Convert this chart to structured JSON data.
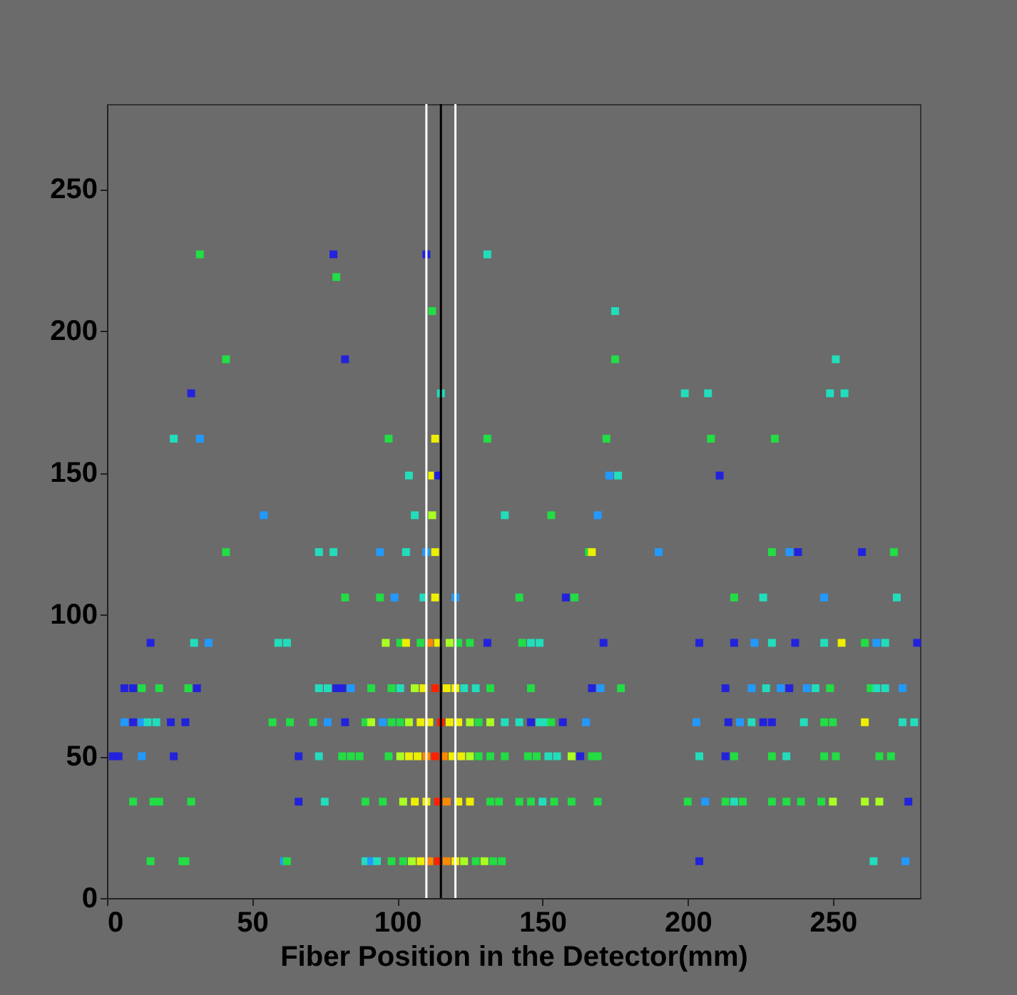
{
  "chart_data": {
    "type": "scatter",
    "xlabel": "Fiber Position in the Detector(mm)",
    "xlim": [
      0,
      280
    ],
    "xticks": [
      0,
      50,
      100,
      150,
      200,
      250
    ],
    "ylim": [
      0,
      280
    ],
    "yticks": [
      0,
      50,
      100,
      150,
      200,
      250
    ],
    "grid": false,
    "marker": "square",
    "x": [
      15,
      26,
      27,
      61,
      62,
      89,
      91,
      93,
      98,
      102,
      105,
      108,
      111,
      114,
      117,
      120,
      123,
      127,
      130,
      133,
      136,
      204,
      264,
      275,
      9,
      16,
      18,
      29,
      66,
      75,
      89,
      95,
      102,
      106,
      110,
      114,
      117,
      121,
      125,
      132,
      135,
      142,
      146,
      150,
      154,
      160,
      169,
      200,
      206,
      213,
      216,
      219,
      229,
      234,
      239,
      246,
      250,
      261,
      266,
      276,
      2,
      4,
      12,
      23,
      66,
      73,
      81,
      84,
      87,
      97,
      101,
      104,
      107,
      110,
      113,
      116,
      119,
      122,
      125,
      128,
      132,
      137,
      145,
      148,
      152,
      155,
      160,
      163,
      167,
      169,
      204,
      213,
      216,
      229,
      234,
      247,
      251,
      266,
      270,
      6,
      9,
      12,
      14,
      17,
      22,
      27,
      57,
      63,
      71,
      76,
      82,
      89,
      91,
      95,
      98,
      101,
      104,
      108,
      111,
      115,
      118,
      121,
      125,
      128,
      132,
      137,
      142,
      146,
      149,
      151,
      153,
      157,
      165,
      203,
      214,
      218,
      222,
      226,
      229,
      240,
      247,
      250,
      261,
      274,
      278,
      6,
      9,
      12,
      18,
      28,
      31,
      73,
      76,
      79,
      81,
      84,
      91,
      98,
      101,
      106,
      109,
      113,
      117,
      120,
      123,
      127,
      132,
      146,
      167,
      170,
      177,
      213,
      222,
      227,
      232,
      235,
      241,
      244,
      249,
      263,
      265,
      268,
      274,
      15,
      30,
      35,
      59,
      62,
      96,
      101,
      103,
      108,
      111,
      114,
      118,
      121,
      125,
      131,
      143,
      146,
      149,
      171,
      204,
      216,
      223,
      229,
      237,
      247,
      253,
      261,
      265,
      268,
      279,
      82,
      94,
      99,
      109,
      113,
      120,
      142,
      158,
      161,
      216,
      226,
      247,
      272,
      41,
      73,
      78,
      94,
      103,
      110,
      113,
      166,
      167,
      190,
      229,
      235,
      238,
      260,
      271,
      54,
      106,
      112,
      137,
      153,
      169,
      104,
      112,
      114,
      173,
      176,
      211,
      23,
      32,
      97,
      113,
      131,
      172,
      208,
      230,
      29,
      115,
      199,
      207,
      249,
      254,
      41,
      82,
      175,
      251,
      112,
      175,
      79,
      32,
      78,
      110,
      131
    ],
    "values": [
      13,
      13,
      13,
      13,
      13,
      13,
      13,
      13,
      13,
      13,
      13,
      13,
      13,
      13,
      13,
      13,
      13,
      13,
      13,
      13,
      13,
      13,
      13,
      13,
      34,
      34,
      34,
      34,
      34,
      34,
      34,
      34,
      34,
      34,
      34,
      34,
      34,
      34,
      34,
      34,
      34,
      34,
      34,
      34,
      34,
      34,
      34,
      34,
      34,
      34,
      34,
      34,
      34,
      34,
      34,
      34,
      34,
      34,
      34,
      34,
      50,
      50,
      50,
      50,
      50,
      50,
      50,
      50,
      50,
      50,
      50,
      50,
      50,
      50,
      50,
      50,
      50,
      50,
      50,
      50,
      50,
      50,
      50,
      50,
      50,
      50,
      50,
      50,
      50,
      50,
      50,
      50,
      50,
      50,
      50,
      50,
      50,
      50,
      50,
      62,
      62,
      62,
      62,
      62,
      62,
      62,
      62,
      62,
      62,
      62,
      62,
      62,
      62,
      62,
      62,
      62,
      62,
      62,
      62,
      62,
      62,
      62,
      62,
      62,
      62,
      62,
      62,
      62,
      62,
      62,
      62,
      62,
      62,
      62,
      62,
      62,
      62,
      62,
      62,
      62,
      62,
      62,
      62,
      62,
      62,
      74,
      74,
      74,
      74,
      74,
      74,
      74,
      74,
      74,
      74,
      74,
      74,
      74,
      74,
      74,
      74,
      74,
      74,
      74,
      74,
      74,
      74,
      74,
      74,
      74,
      74,
      74,
      74,
      74,
      74,
      74,
      74,
      74,
      74,
      74,
      74,
      74,
      74,
      90,
      90,
      90,
      90,
      90,
      90,
      90,
      90,
      90,
      90,
      90,
      90,
      90,
      90,
      90,
      90,
      90,
      90,
      90,
      90,
      90,
      90,
      90,
      90,
      90,
      90,
      90,
      90,
      90,
      90,
      106,
      106,
      106,
      106,
      106,
      106,
      106,
      106,
      106,
      106,
      106,
      106,
      106,
      122,
      122,
      122,
      122,
      122,
      122,
      122,
      122,
      122,
      122,
      122,
      122,
      122,
      122,
      122,
      135,
      135,
      135,
      135,
      135,
      135,
      149,
      149,
      149,
      149,
      149,
      149,
      162,
      162,
      162,
      162,
      162,
      162,
      162,
      162,
      178,
      178,
      178,
      178,
      178,
      178,
      190,
      190,
      190,
      190,
      207,
      207,
      219,
      227,
      227,
      227,
      227
    ],
    "colors": [
      "#22dd44",
      "#22dd44",
      "#22dd44",
      "#2299ff",
      "#22dd44",
      "#22ddbb",
      "#2299ff",
      "#22ddbb",
      "#22dd44",
      "#22dd44",
      "#aaff22",
      "#eeee00",
      "#ff8800",
      "#ff2200",
      "#ff8800",
      "#eeee00",
      "#aaff22",
      "#22dd44",
      "#aaff22",
      "#22dd44",
      "#22dd44",
      "#2222dd",
      "#22ddbb",
      "#2299ff",
      "#22dd44",
      "#22dd44",
      "#22dd44",
      "#22dd44",
      "#2222dd",
      "#22ddbb",
      "#22dd44",
      "#22dd44",
      "#aaff22",
      "#eeee00",
      "#eeee00",
      "#ff2200",
      "#ff8800",
      "#eeee00",
      "#eeee00",
      "#22dd44",
      "#22dd44",
      "#22dd44",
      "#22dd44",
      "#22ddbb",
      "#22dd44",
      "#22dd44",
      "#22dd44",
      "#22dd44",
      "#2299ff",
      "#22dd44",
      "#22ddbb",
      "#22dd44",
      "#22dd44",
      "#22dd44",
      "#22dd44",
      "#22dd44",
      "#aaff22",
      "#aaff22",
      "#aaff22",
      "#2222dd",
      "#2222dd",
      "#2222dd",
      "#2299ff",
      "#2222dd",
      "#2222dd",
      "#22ddbb",
      "#22dd44",
      "#22dd44",
      "#22dd44",
      "#22dd44",
      "#aaff22",
      "#eeee00",
      "#eeee00",
      "#ff8800",
      "#ff2200",
      "#ff8800",
      "#eeee00",
      "#eeee00",
      "#aaff22",
      "#22dd44",
      "#22dd44",
      "#22dd44",
      "#22dd44",
      "#22dd44",
      "#22ddbb",
      "#22ddbb",
      "#aaff22",
      "#2222dd",
      "#22dd44",
      "#22dd44",
      "#22ddbb",
      "#2222dd",
      "#22dd44",
      "#22dd44",
      "#22ddbb",
      "#22dd44",
      "#22dd44",
      "#22dd44",
      "#22dd44",
      "#2299ff",
      "#2222dd",
      "#2299ff",
      "#22ddbb",
      "#22ddbb",
      "#2222dd",
      "#2222dd",
      "#22dd44",
      "#22dd44",
      "#22dd44",
      "#2299ff",
      "#2222dd",
      "#22dd44",
      "#aaff22",
      "#2299ff",
      "#22dd44",
      "#22dd44",
      "#aaff22",
      "#eeee00",
      "#eeee00",
      "#ff2200",
      "#eeee00",
      "#eeee00",
      "#aaff22",
      "#22dd44",
      "#aaff22",
      "#22ddbb",
      "#22ddbb",
      "#2222dd",
      "#22ddbb",
      "#22ddbb",
      "#22dd44",
      "#2222dd",
      "#2299ff",
      "#2299ff",
      "#2222dd",
      "#2299ff",
      "#22ddbb",
      "#2222dd",
      "#2222dd",
      "#22ddbb",
      "#22dd44",
      "#22dd44",
      "#eeee00",
      "#22ddbb",
      "#22ddbb",
      "#2222dd",
      "#2222dd",
      "#22dd44",
      "#22dd44",
      "#22dd44",
      "#2222dd",
      "#22ddbb",
      "#22ddbb",
      "#2222dd",
      "#2222dd",
      "#2299ff",
      "#22dd44",
      "#22dd44",
      "#22ddbb",
      "#aaff22",
      "#eeee00",
      "#ff2200",
      "#eeee00",
      "#eeee00",
      "#22ddbb",
      "#22ddbb",
      "#22dd44",
      "#22dd44",
      "#2222dd",
      "#2299ff",
      "#22dd44",
      "#2222dd",
      "#2299ff",
      "#22ddbb",
      "#2299ff",
      "#2222dd",
      "#2299ff",
      "#22ddbb",
      "#22dd44",
      "#22dd44",
      "#22ddbb",
      "#22ddbb",
      "#2299ff",
      "#2222dd",
      "#22ddbb",
      "#2299ff",
      "#22ddbb",
      "#22ddbb",
      "#aaff22",
      "#22dd44",
      "#eeee00",
      "#22dd44",
      "#ff8800",
      "#eeee00",
      "#aaff22",
      "#22dd44",
      "#22dd44",
      "#2222dd",
      "#22dd44",
      "#22ddbb",
      "#22ddbb",
      "#2222dd",
      "#2222dd",
      "#2222dd",
      "#2299ff",
      "#22ddbb",
      "#2222dd",
      "#22ddbb",
      "#eeee00",
      "#22dd44",
      "#2299ff",
      "#22ddbb",
      "#2222dd",
      "#22dd44",
      "#22dd44",
      "#2299ff",
      "#22ddbb",
      "#eeee00",
      "#2299ff",
      "#22dd44",
      "#2222dd",
      "#22dd44",
      "#22dd44",
      "#22ddbb",
      "#2299ff",
      "#22ddbb",
      "#22dd44",
      "#22ddbb",
      "#22ddbb",
      "#2299ff",
      "#22ddbb",
      "#2299ff",
      "#eeee00",
      "#22dd44",
      "#eeee00",
      "#2299ff",
      "#22dd44",
      "#2299ff",
      "#2222dd",
      "#2222dd",
      "#22dd44",
      "#2299ff",
      "#22ddbb",
      "#aaff22",
      "#22ddbb",
      "#22dd44",
      "#2299ff",
      "#22ddbb",
      "#eeee00",
      "#2222dd",
      "#2299ff",
      "#22ddbb",
      "#2222dd",
      "#22ddbb",
      "#2299ff",
      "#22dd44",
      "#eeee00",
      "#22dd44",
      "#22dd44",
      "#22dd44",
      "#22dd44",
      "#2222dd",
      "#22ddbb",
      "#22ddbb",
      "#22ddbb",
      "#22ddbb",
      "#22ddbb",
      "#22dd44",
      "#2222dd",
      "#22dd44",
      "#22ddbb",
      "#22dd44",
      "#22ddbb",
      "#22dd44",
      "#22dd44",
      "#2222dd",
      "#2222dd",
      "#22ddbb"
    ],
    "ref_lines": [
      {
        "axis": "x",
        "value": 110,
        "color": "#ffffff"
      },
      {
        "axis": "x",
        "value": 115,
        "color": "#000000"
      },
      {
        "axis": "x",
        "value": 120,
        "color": "#ffffff"
      }
    ]
  }
}
